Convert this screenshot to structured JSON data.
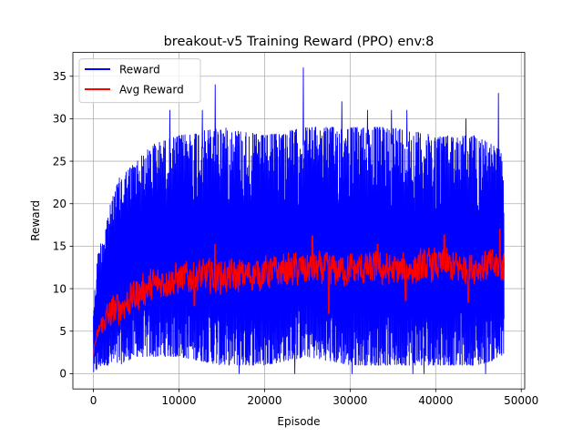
{
  "chart_data": {
    "type": "line",
    "title": "breakout-v5 Training Reward (PPO) env:8",
    "xlabel": "Episode",
    "ylabel": "Reward",
    "xlim": [
      -2400,
      50400
    ],
    "ylim": [
      -1.8,
      37.8
    ],
    "xticks": [
      0,
      10000,
      20000,
      30000,
      40000,
      50000
    ],
    "yticks": [
      0,
      5,
      10,
      15,
      20,
      25,
      30,
      35
    ],
    "grid": true,
    "legend_position": "top-left",
    "series": [
      {
        "name": "Reward",
        "color": "#0000ff",
        "x_range": [
          0,
          48000
        ],
        "band_lower": [
          [
            0,
            0
          ],
          [
            1000,
            1
          ],
          [
            3000,
            1
          ],
          [
            5000,
            2
          ],
          [
            10000,
            2
          ],
          [
            15000,
            1
          ],
          [
            20000,
            1
          ],
          [
            25000,
            2
          ],
          [
            30000,
            1
          ],
          [
            35000,
            1
          ],
          [
            40000,
            1
          ],
          [
            45000,
            1
          ],
          [
            48000,
            2
          ]
        ],
        "band_upper": [
          [
            0,
            8
          ],
          [
            500,
            14
          ],
          [
            1000,
            16
          ],
          [
            2000,
            20
          ],
          [
            3000,
            23
          ],
          [
            4000,
            24
          ],
          [
            5000,
            25
          ],
          [
            7000,
            27
          ],
          [
            10000,
            28
          ],
          [
            15000,
            29
          ],
          [
            20000,
            28
          ],
          [
            25000,
            29
          ],
          [
            30000,
            29
          ],
          [
            35000,
            29
          ],
          [
            40000,
            28
          ],
          [
            45000,
            28
          ],
          [
            48000,
            26
          ]
        ],
        "spikes": [
          [
            24500,
            36
          ],
          [
            14200,
            34
          ],
          [
            47300,
            33
          ],
          [
            29000,
            32
          ],
          [
            8900,
            31
          ],
          [
            12700,
            31
          ],
          [
            32000,
            31
          ],
          [
            34800,
            31
          ],
          [
            36600,
            31
          ],
          [
            43500,
            30
          ]
        ],
        "dips": [
          [
            17000,
            0
          ],
          [
            23500,
            0
          ],
          [
            30200,
            0
          ],
          [
            37300,
            0
          ],
          [
            38600,
            0
          ],
          [
            45800,
            0
          ]
        ]
      },
      {
        "name": "Avg Reward",
        "color": "#ff0000",
        "x_range": [
          0,
          48000
        ],
        "trend": [
          [
            0,
            2.5
          ],
          [
            300,
            4
          ],
          [
            800,
            5.5
          ],
          [
            1500,
            6.5
          ],
          [
            2500,
            7.5
          ],
          [
            4000,
            8.5
          ],
          [
            6000,
            10
          ],
          [
            8000,
            10.8
          ],
          [
            10000,
            11.2
          ],
          [
            13000,
            11.5
          ],
          [
            16000,
            11.4
          ],
          [
            20000,
            11.9
          ],
          [
            24000,
            12.3
          ],
          [
            28000,
            12.2
          ],
          [
            32000,
            12.3
          ],
          [
            36000,
            12.1
          ],
          [
            40000,
            12.8
          ],
          [
            43000,
            12.4
          ],
          [
            46000,
            12.7
          ],
          [
            48000,
            12.6
          ]
        ],
        "noise_amplitude": 2.5,
        "peaks": [
          [
            14200,
            15.2
          ],
          [
            25600,
            16.2
          ],
          [
            41000,
            16.3
          ],
          [
            47500,
            17.0
          ],
          [
            33200,
            15.2
          ]
        ],
        "troughs": [
          [
            27500,
            7.1
          ],
          [
            11800,
            8.0
          ],
          [
            43800,
            8.4
          ],
          [
            36500,
            8.6
          ]
        ]
      }
    ]
  }
}
